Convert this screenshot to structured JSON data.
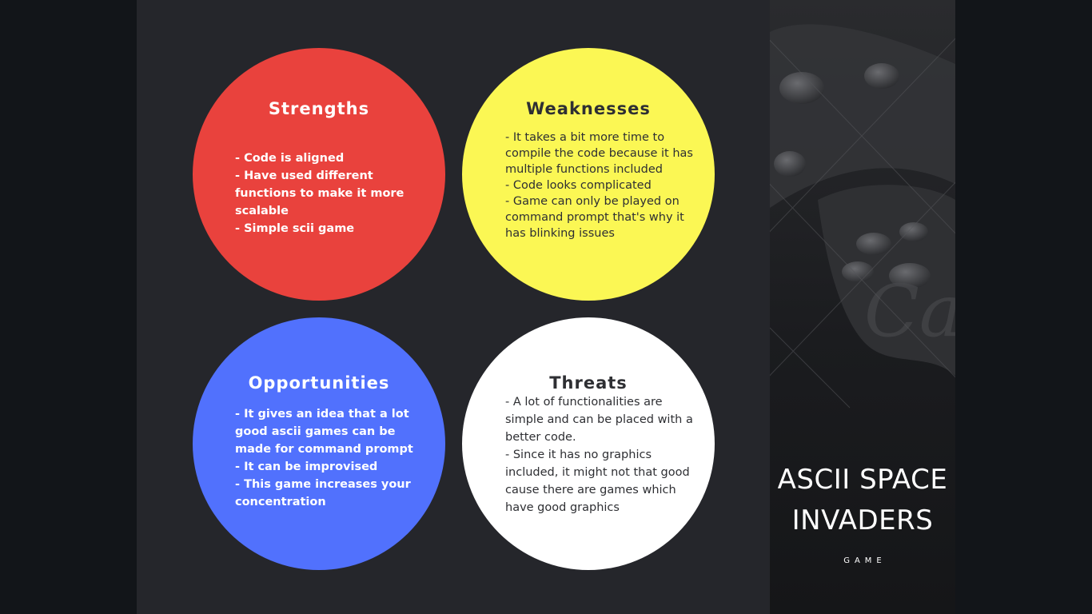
{
  "swot": {
    "strengths": {
      "title": "Strengths",
      "items": [
        "- Code is aligned",
        "- Have used different functions to make it more scalable",
        "- Simple scii game"
      ]
    },
    "weaknesses": {
      "title": "Weaknesses",
      "items": [
        "- It takes a bit more time to compile the code because it has multiple functions included",
        "- Code looks complicated",
        "- Game can only be played on command prompt that's why it has blinking issues"
      ]
    },
    "opportunities": {
      "title": "Opportunities",
      "items": [
        "- It gives an idea that a lot good ascii games can be made for command prompt",
        "- It can be improvised",
        "- This game increases your concentration"
      ]
    },
    "threats": {
      "title": "Threats",
      "items": [
        "- A lot of functionalities are simple and can be placed with a better code.",
        "- Since it has no graphics included, it might not that good cause there are games which have good  graphics"
      ]
    }
  },
  "sidebar": {
    "title_line1": "ASCII SPACE",
    "title_line2": "INVADERS",
    "subtitle": "GAME",
    "background_image": "game-controller-photo",
    "colors": {
      "strengths": "#e9423d",
      "weaknesses": "#fbf754",
      "opportunities": "#5171fd",
      "threats": "#ffffff",
      "slide_background": "#25262b"
    }
  }
}
